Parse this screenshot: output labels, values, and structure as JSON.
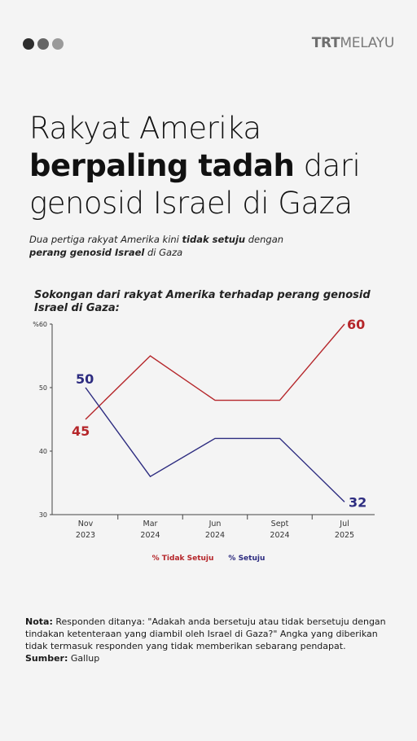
{
  "header": {
    "dot_colors": [
      "#2e2e2e",
      "#666666",
      "#9a9a9a"
    ],
    "logo_bold": "TRT",
    "logo_rest": "MELAYU"
  },
  "headline": {
    "line1": "Rakyat Amerika",
    "line2_bold": "berpaling tadah",
    "line2_rest": "dari",
    "line3": "genosid Israel di Gaza"
  },
  "subhead": {
    "part1": "Dua pertiga rakyat Amerika kini ",
    "bold1": "tidak setuju",
    "part2": " dengan ",
    "bold2": "perang genosid Israel",
    "part3": " di Gaza"
  },
  "chart_data": {
    "type": "line",
    "title": "Sokongan dari rakyat Amerika terhadap perang genosid Israel di Gaza:",
    "categories": [
      "Nov\n2023",
      "Mar\n2024",
      "Jun\n2024",
      "Sept\n2024",
      "Jul\n2025"
    ],
    "y_ticks": [
      "%60",
      "50",
      "40",
      "30"
    ],
    "ylim": [
      30,
      60
    ],
    "grid": false,
    "legend_position": "bottom-center",
    "series": [
      {
        "name": "% Tidak Setuju",
        "color": "#b5262a",
        "values": [
          45,
          55,
          48,
          48,
          60
        ],
        "end_labels": [
          "45",
          "60"
        ]
      },
      {
        "name": "% Setuju",
        "color": "#2d2c80",
        "values": [
          50,
          36,
          42,
          42,
          32
        ],
        "end_labels": [
          "50",
          "32"
        ]
      }
    ]
  },
  "note": {
    "label": "Nota:",
    "text": " Responden ditanya: \"Adakah anda bersetuju atau tidak bersetuju dengan tindakan ketenteraan yang diambil oleh Israel di Gaza?\" Angka yang diberikan tidak termasuk responden yang tidak memberikan sebarang pendapat.",
    "source_label": "Sumber:",
    "source": " Gallup"
  }
}
